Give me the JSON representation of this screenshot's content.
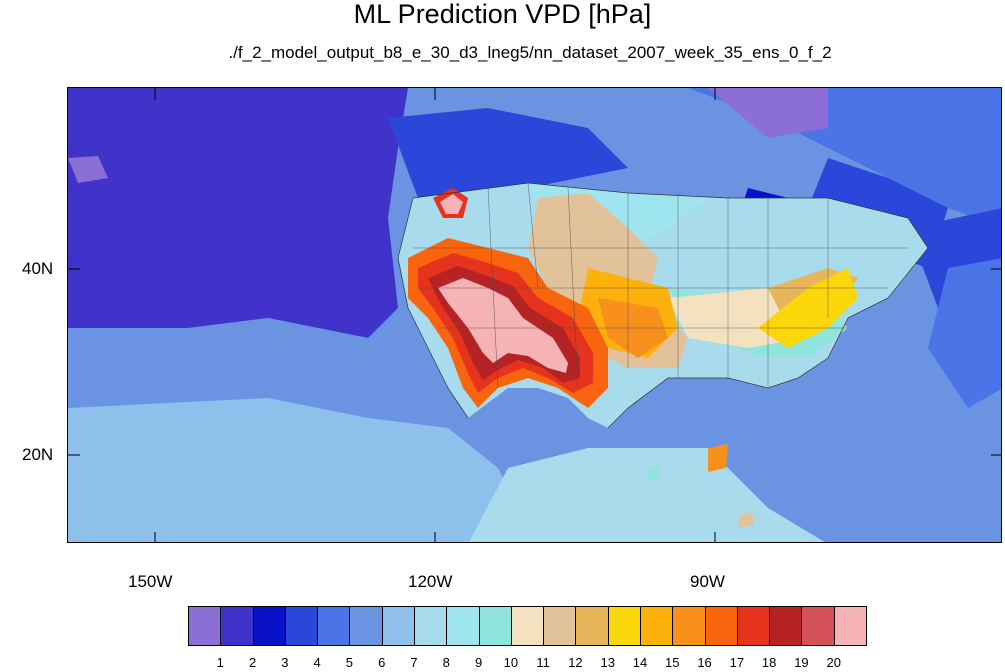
{
  "title": "ML Prediction VPD [hPa]",
  "subtitle": "./f_2_model_output_b8_e_30_d3_lneg5/nn_dataset_2007_week_35_ens_0_f_2",
  "lon_labels": [
    "150W",
    "120W",
    "90W"
  ],
  "lat_labels": [
    "40N",
    "20N"
  ],
  "colorbar": {
    "colors": [
      "#8b6fd6",
      "#3f33c9",
      "#0a12c9",
      "#2b47d9",
      "#4b74e6",
      "#6a93e2",
      "#8fc0ec",
      "#a8dcec",
      "#9fe5f0",
      "#8fe5db",
      "#f3e1bf",
      "#e2c29b",
      "#e8b65a",
      "#fbd60a",
      "#fcb10c",
      "#f9901c",
      "#f8650e",
      "#e6331e",
      "#b52325",
      "#d4515a",
      "#f6b3b6"
    ],
    "labels": [
      "1",
      "2",
      "3",
      "4",
      "5",
      "6",
      "7",
      "8",
      "9",
      "10",
      "11",
      "12",
      "13",
      "14",
      "15",
      "16",
      "17",
      "18",
      "19",
      "20"
    ]
  }
}
